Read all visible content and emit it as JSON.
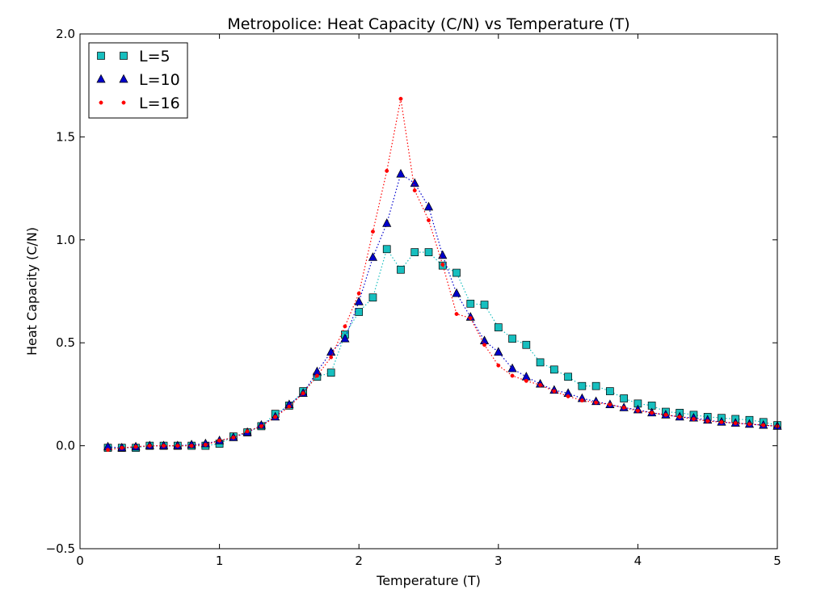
{
  "chart_data": {
    "type": "scatter",
    "title": "Metropolice: Heat Capacity (C/N) vs Temperature (T)",
    "xlabel": "Temperature (T)",
    "ylabel": "Heat Capacity (C/N)",
    "xlim": [
      0,
      5
    ],
    "ylim": [
      -0.5,
      2.0
    ],
    "xticks": [
      0,
      1,
      2,
      3,
      4,
      5
    ],
    "xtick_labels": [
      "0",
      "1",
      "2",
      "3",
      "4",
      "5"
    ],
    "yticks": [
      -0.5,
      0.0,
      0.5,
      1.0,
      1.5,
      2.0
    ],
    "ytick_labels": [
      "−0.5",
      "0.0",
      "0.5",
      "1.0",
      "1.5",
      "2.0"
    ],
    "grid": false,
    "legend_position": "top-left",
    "x": [
      0.2,
      0.3,
      0.4,
      0.5,
      0.6,
      0.7,
      0.8,
      0.9,
      1.0,
      1.1,
      1.2,
      1.3,
      1.4,
      1.5,
      1.6,
      1.7,
      1.8,
      1.9,
      2.0,
      2.1,
      2.2,
      2.3,
      2.4,
      2.5,
      2.6,
      2.7,
      2.8,
      2.9,
      3.0,
      3.1,
      3.2,
      3.3,
      3.4,
      3.5,
      3.6,
      3.7,
      3.8,
      3.9,
      4.0,
      4.1,
      4.2,
      4.3,
      4.4,
      4.5,
      4.6,
      4.7,
      4.8,
      4.9,
      5.0
    ],
    "series": [
      {
        "name": "L=5",
        "marker": "square",
        "color": "#17bfbf",
        "line_style": "dotted",
        "values": [
          -0.01,
          -0.01,
          -0.01,
          0.0,
          0.0,
          0.0,
          0.0,
          0.0,
          0.01,
          0.045,
          0.065,
          0.095,
          0.155,
          0.195,
          0.265,
          0.335,
          0.355,
          0.54,
          0.65,
          0.72,
          0.955,
          0.855,
          0.94,
          0.94,
          0.875,
          0.84,
          0.69,
          0.685,
          0.575,
          0.52,
          0.49,
          0.405,
          0.37,
          0.335,
          0.29,
          0.29,
          0.265,
          0.23,
          0.205,
          0.195,
          0.165,
          0.16,
          0.15,
          0.14,
          0.135,
          0.13,
          0.125,
          0.115,
          0.1
        ]
      },
      {
        "name": "L=10",
        "marker": "triangle",
        "color": "#0000cc",
        "line_style": "dotted",
        "values": [
          -0.005,
          -0.01,
          -0.005,
          0.0,
          0.0,
          0.0,
          0.005,
          0.01,
          0.025,
          0.04,
          0.065,
          0.1,
          0.14,
          0.2,
          0.255,
          0.36,
          0.455,
          0.52,
          0.7,
          0.915,
          1.08,
          1.32,
          1.275,
          1.16,
          0.925,
          0.74,
          0.625,
          0.51,
          0.455,
          0.375,
          0.335,
          0.3,
          0.27,
          0.255,
          0.23,
          0.215,
          0.2,
          0.185,
          0.175,
          0.16,
          0.15,
          0.14,
          0.135,
          0.125,
          0.115,
          0.11,
          0.105,
          0.1,
          0.095
        ]
      },
      {
        "name": "L=16",
        "marker": "dot",
        "color": "#ff0000",
        "line_style": "dotted",
        "values": [
          -0.02,
          -0.01,
          -0.005,
          0.0,
          0.0,
          0.0,
          0.0,
          0.005,
          0.025,
          0.04,
          0.07,
          0.095,
          0.14,
          0.19,
          0.255,
          0.34,
          0.43,
          0.58,
          0.74,
          1.04,
          1.335,
          1.685,
          1.24,
          1.095,
          0.88,
          0.64,
          0.62,
          0.49,
          0.39,
          0.34,
          0.315,
          0.295,
          0.265,
          0.24,
          0.22,
          0.21,
          0.2,
          0.185,
          0.17,
          0.16,
          0.15,
          0.14,
          0.13,
          0.12,
          0.115,
          0.11,
          0.105,
          0.1,
          0.095
        ]
      }
    ]
  }
}
